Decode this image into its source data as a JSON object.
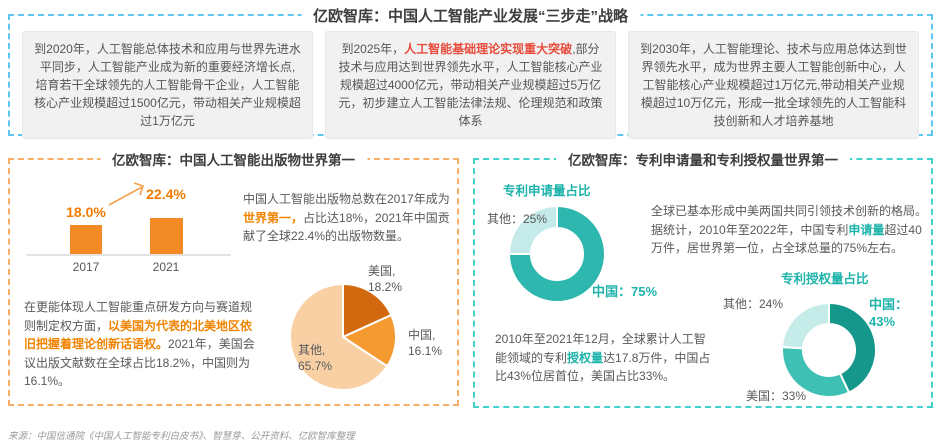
{
  "strategy": {
    "title": "亿欧智库：中国人工智能产业发展“三步走”战略",
    "steps": [
      {
        "pre": "到2020年，人工智能总体技术和应用与世界先进水平同步，人工智能产业成为新的重要经济增长点,培育若干全球领先的人工智能骨干企业，人工智能核心产业规模超过1500亿元，带动相关产业规模超过1万亿元",
        "highlight": "",
        "post": ""
      },
      {
        "pre": "到2025年，",
        "highlight": "人工智能基础理论实现重大突破",
        "post": ",部分技术与应用达到世界领先水平，人工智能核心产业规模超过4000亿元，带动相关产业规模超过5万亿元，初步建立人工智能法律法规、伦理规范和政策体系"
      },
      {
        "pre": "到2030年，人工智能理论、技术与应用总体达到世界领先水平，成为世界主要人工智能创新中心，人工智能核心产业规模超过1万亿元,带动相关产业规模超过10万亿元，形成一批全球领先的人工智能科技创新和人才培养基地",
        "highlight": "",
        "post": ""
      }
    ]
  },
  "publications": {
    "title": "亿欧智库：中国人工智能出版物世界第一",
    "para1": {
      "pre": "中国人工智能出版物总数在2017年成为",
      "highlight": "世界第一，",
      "post": "占比达18%，2021年中国贡献了全球22.4%的出版物数量。"
    },
    "para2": {
      "pre": "在更能体现人工智能重点研发方向与赛道规则制定权方面，",
      "highlight": "以美国为代表的北美地区依旧把握着理论创新话语权。",
      "post": "2021年，美国会议出版文献数在全球占比18.2%，中国则为16.1%。"
    }
  },
  "patents": {
    "title": "亿欧智库：专利申请量和专利授权量世界第一",
    "para1": {
      "pre": "全球已基本形成中美两国共同引领技术创新的格局。据统计，2010年至2022年，中国专利",
      "highlight": "申请量",
      "post": "超过40万件，居世界第一位，占全球总量的75%左右。"
    },
    "para2": {
      "pre": "2010年至2021年12月，全球累计人工智能领域的专利",
      "highlight": "授权量",
      "post": "达17.8万件，中国占比43%位居首位，美国占比33%。"
    }
  },
  "footer": {
    "source": "来源：中国信通院《中国人工智能专利白皮书》、智慧芽、公开资料、亿欧智库整理"
  },
  "colors": {
    "panel_blue": "#5ec7ef",
    "panel_orange": "#f8ae66",
    "panel_teal": "#43d1cc",
    "red_accent": "#e74c3c",
    "orange_accent": "#f08300",
    "teal_accent": "#1db3aa",
    "bar_orange": "#f28a26"
  },
  "chart_data": [
    {
      "type": "bar",
      "title": "",
      "categories": [
        "2017",
        "2021"
      ],
      "values": [
        18.0,
        22.4
      ],
      "unit": "%",
      "bar_color": "#f28a26"
    },
    {
      "type": "pie",
      "title": "",
      "slices": [
        {
          "label": "美国",
          "value": 18.2,
          "color": "#d2690f"
        },
        {
          "label": "中国",
          "value": 16.1,
          "color": "#f59a30"
        },
        {
          "label": "其他",
          "value": 65.7,
          "color": "#f8d0a4"
        }
      ]
    },
    {
      "type": "donut",
      "title": "专利申请量占比",
      "slices": [
        {
          "label": "中国",
          "value": 75,
          "color": "#2eb7ae"
        },
        {
          "label": "其他",
          "value": 25,
          "color": "#c4ebe9"
        }
      ]
    },
    {
      "type": "donut",
      "title": "专利授权量占比",
      "slices": [
        {
          "label": "中国",
          "value": 43,
          "color": "#16978c"
        },
        {
          "label": "美国",
          "value": 33,
          "color": "#3fc0b4"
        },
        {
          "label": "其他",
          "value": 24,
          "color": "#c6ecea"
        }
      ]
    }
  ]
}
